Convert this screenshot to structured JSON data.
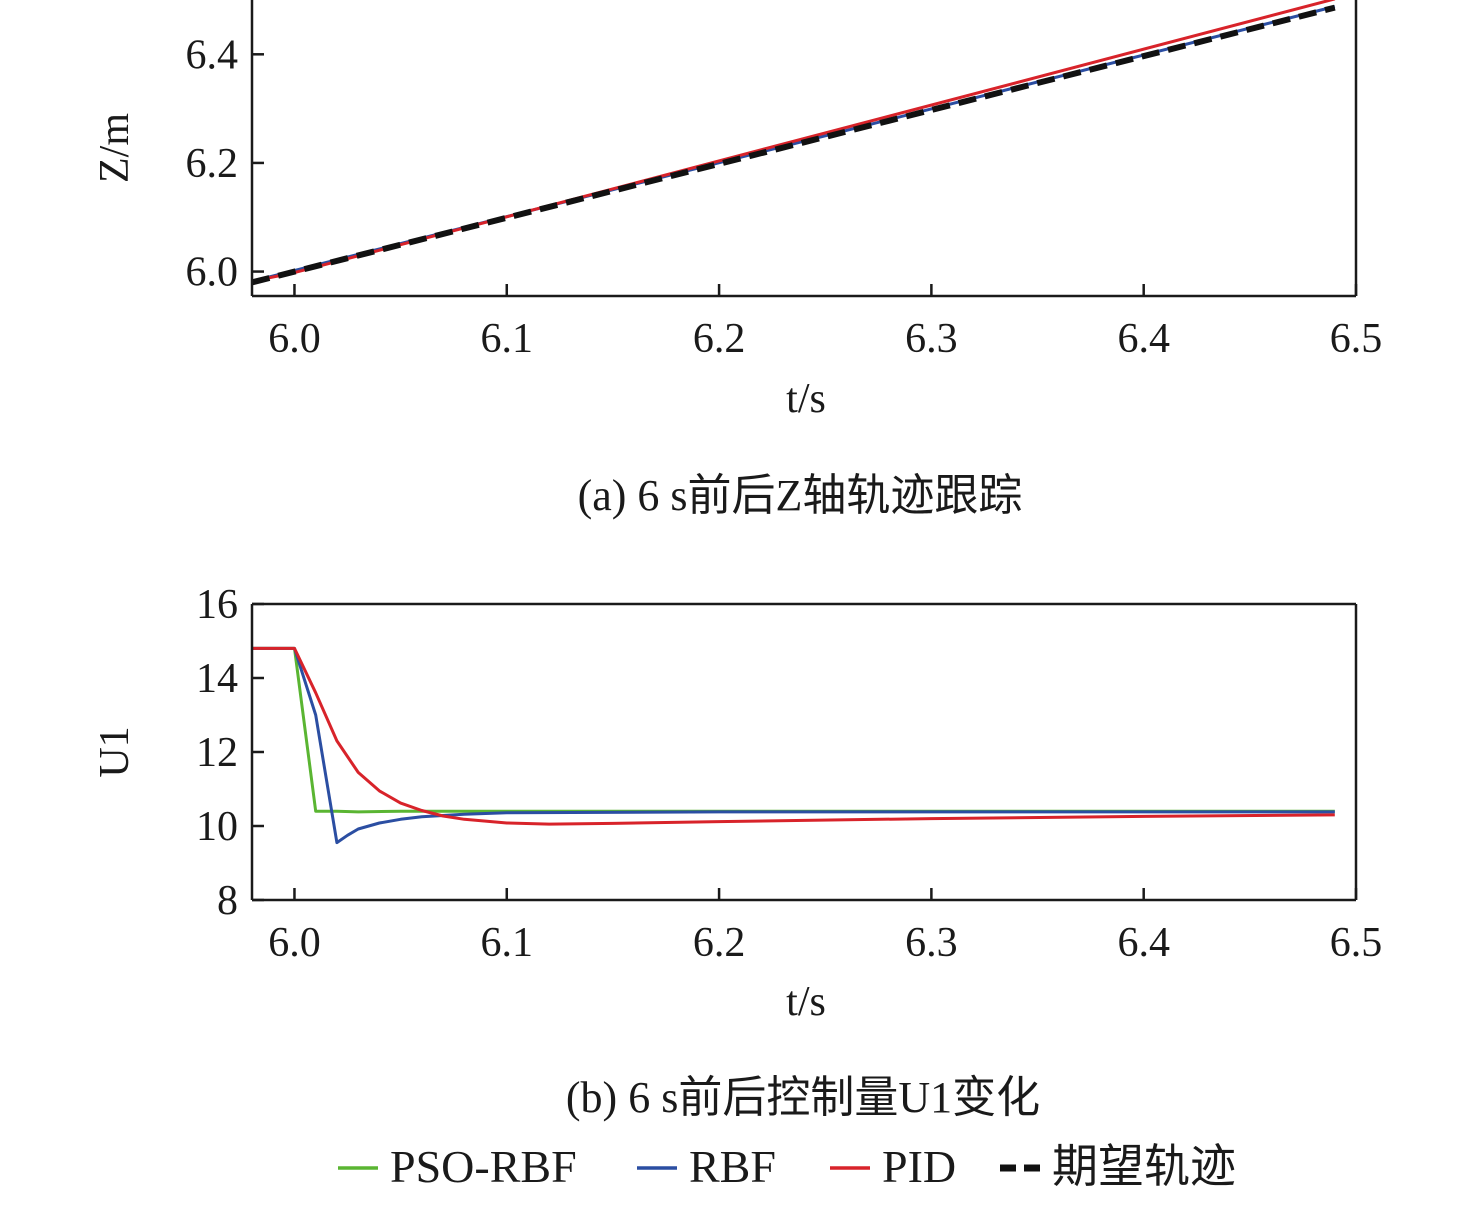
{
  "legend": [
    {
      "key": "pso",
      "label": "PSO-RBF",
      "color": "#5ab532",
      "dash": false
    },
    {
      "key": "rbf",
      "label": "RBF",
      "color": "#2b4ea2",
      "dash": false
    },
    {
      "key": "pid",
      "label": "PID",
      "color": "#d8232a",
      "dash": false
    },
    {
      "key": "ref",
      "label": "期望轨迹",
      "color": "#111111",
      "dash": true
    }
  ],
  "chart_data": [
    {
      "type": "line",
      "caption": "(a) 6 s前后Z轴轨迹跟踪",
      "xlabel": "t/s",
      "ylabel": "Z/m",
      "xlim": [
        5.98,
        6.5
      ],
      "ylim": [
        5.955,
        6.5
      ],
      "xticks": [
        "6.0",
        "6.1",
        "6.2",
        "6.3",
        "6.4",
        "6.5"
      ],
      "yticks": [
        "6.0",
        "6.2",
        "6.4"
      ],
      "series": [
        {
          "name": "RBF",
          "x": [
            5.98,
            6.49
          ],
          "y": [
            5.982,
            6.488
          ]
        },
        {
          "name": "PID",
          "x": [
            5.98,
            6.0,
            6.49
          ],
          "y": [
            5.982,
            5.998,
            6.502
          ]
        },
        {
          "name": "期望轨迹",
          "x": [
            5.98,
            6.49
          ],
          "y": [
            5.98,
            6.486
          ]
        }
      ]
    },
    {
      "type": "line",
      "caption": "(b) 6 s前后控制量U1变化",
      "xlabel": "t/s",
      "ylabel": "U1",
      "xlim": [
        5.98,
        6.5
      ],
      "ylim": [
        8,
        16
      ],
      "xticks": [
        "6.0",
        "6.1",
        "6.2",
        "6.3",
        "6.4",
        "6.5"
      ],
      "yticks": [
        "8",
        "10",
        "12",
        "14",
        "16"
      ],
      "series": [
        {
          "name": "PSO-RBF",
          "x": [
            5.98,
            6.0,
            6.01,
            6.02,
            6.03,
            6.05,
            6.1,
            6.2,
            6.3,
            6.4,
            6.49
          ],
          "y": [
            14.8,
            14.8,
            10.4,
            10.4,
            10.38,
            10.4,
            10.4,
            10.4,
            10.4,
            10.4,
            10.4
          ]
        },
        {
          "name": "RBF",
          "x": [
            5.98,
            6.0,
            6.01,
            6.02,
            6.025,
            6.03,
            6.04,
            6.05,
            6.06,
            6.08,
            6.1,
            6.2,
            6.3,
            6.4,
            6.49
          ],
          "y": [
            14.8,
            14.8,
            13.0,
            9.55,
            9.75,
            9.92,
            10.08,
            10.18,
            10.25,
            10.32,
            10.36,
            10.38,
            10.38,
            10.38,
            10.38
          ]
        },
        {
          "name": "PID",
          "x": [
            5.98,
            6.0,
            6.01,
            6.02,
            6.03,
            6.04,
            6.05,
            6.06,
            6.07,
            6.08,
            6.1,
            6.12,
            6.15,
            6.2,
            6.3,
            6.4,
            6.49
          ],
          "y": [
            14.8,
            14.8,
            13.6,
            12.3,
            11.45,
            10.95,
            10.62,
            10.42,
            10.27,
            10.18,
            10.08,
            10.05,
            10.07,
            10.12,
            10.2,
            10.26,
            10.3
          ]
        }
      ]
    }
  ]
}
